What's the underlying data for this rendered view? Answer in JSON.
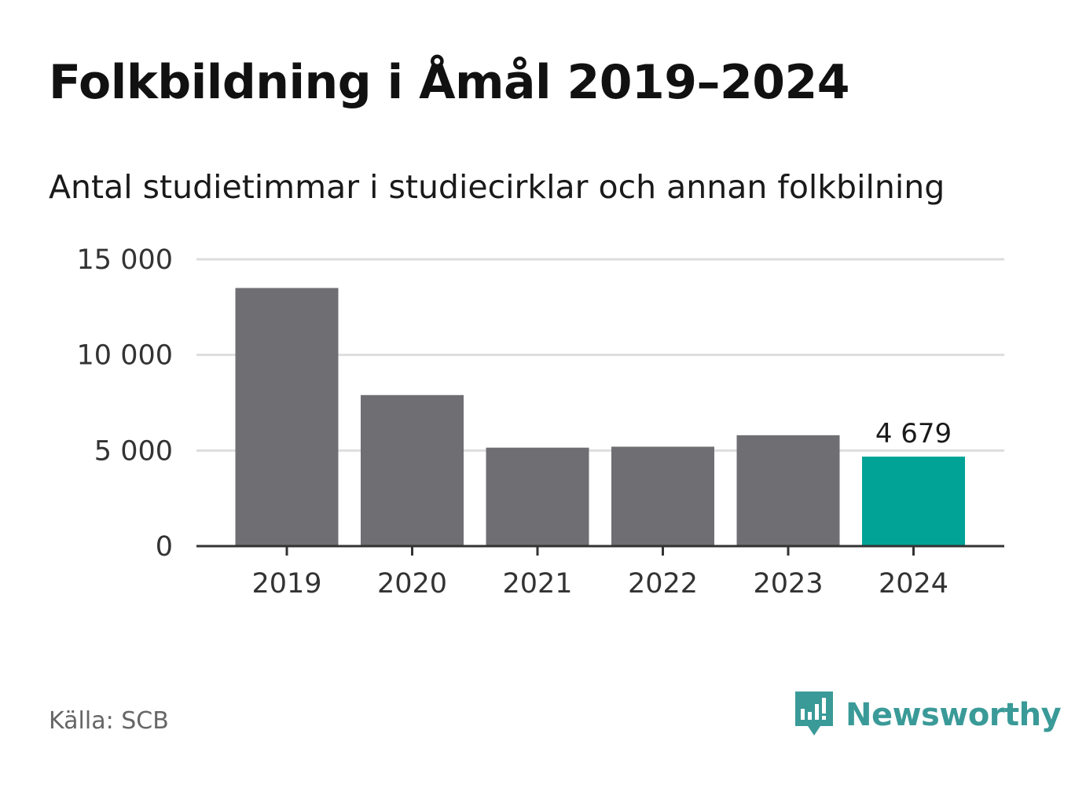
{
  "header": {
    "title": "Folkbildning i Åmål 2019–2024",
    "subtitle": "Antal studietimmar i studiecirklar och annan folkbilning"
  },
  "footer": {
    "source": "Källa: SCB",
    "brand": "Newsworthy",
    "brand_icon": "newsworthy-logo-icon"
  },
  "colors": {
    "bar": "#6f6e73",
    "highlight": "#00a396",
    "grid": "#dddddd",
    "axis": "#333333",
    "brand": "#3a9a98"
  },
  "chart_data": {
    "type": "bar",
    "categories": [
      "2019",
      "2020",
      "2021",
      "2022",
      "2023",
      "2024"
    ],
    "values": [
      13500,
      7900,
      5150,
      5200,
      5800,
      4679
    ],
    "highlight_index": 5,
    "data_labels": [
      {
        "index": 5,
        "text": "4 679"
      }
    ],
    "y_ticks": [
      0,
      5000,
      10000,
      15000
    ],
    "y_tick_labels": [
      "0",
      "5 000",
      "10 000",
      "15 000"
    ],
    "ylim": [
      0,
      15000
    ],
    "grid": true,
    "xlabel": "",
    "ylabel": ""
  }
}
